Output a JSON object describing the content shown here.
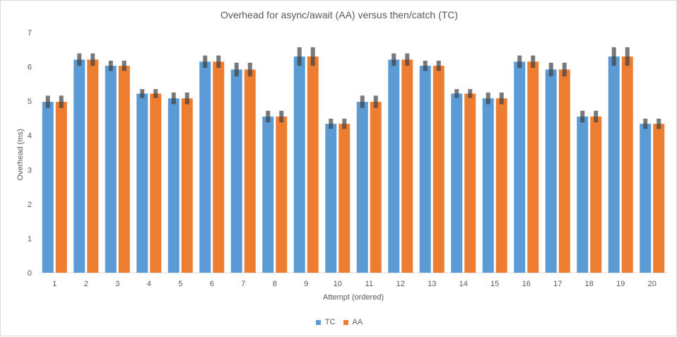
{
  "chart_data": {
    "type": "bar",
    "title": "Overhead for async/await (AA) versus then/catch (TC)",
    "xlabel": "Attempt  (ordered)",
    "ylabel": "Overhead (ms)",
    "ylim": [
      0,
      7
    ],
    "yticks": [
      "0",
      "1",
      "2",
      "3",
      "4",
      "5",
      "6",
      "7"
    ],
    "categories": [
      "1",
      "2",
      "3",
      "4",
      "5",
      "6",
      "7",
      "8",
      "9",
      "10",
      "11",
      "12",
      "13",
      "14",
      "15",
      "16",
      "17",
      "18",
      "19",
      "20"
    ],
    "series": [
      {
        "name": "TC",
        "color": "#5b9bd5",
        "values": [
          4.98,
          6.21,
          6.03,
          5.22,
          5.08,
          6.15,
          5.92,
          4.55,
          6.3,
          4.34,
          4.98,
          6.21,
          6.03,
          5.22,
          5.08,
          6.15,
          5.92,
          4.55,
          6.3,
          4.34
        ],
        "error": [
          0.18,
          0.18,
          0.15,
          0.13,
          0.17,
          0.18,
          0.2,
          0.17,
          0.27,
          0.15,
          0.18,
          0.18,
          0.15,
          0.13,
          0.17,
          0.18,
          0.2,
          0.17,
          0.27,
          0.15
        ]
      },
      {
        "name": "AA",
        "color": "#ed7d31",
        "values": [
          4.98,
          6.21,
          6.03,
          5.22,
          5.08,
          6.15,
          5.92,
          4.55,
          6.3,
          4.34,
          4.98,
          6.21,
          6.03,
          5.22,
          5.08,
          6.15,
          5.92,
          4.55,
          6.3,
          4.34
        ],
        "error": [
          0.18,
          0.18,
          0.15,
          0.13,
          0.17,
          0.18,
          0.2,
          0.17,
          0.27,
          0.15,
          0.18,
          0.18,
          0.15,
          0.13,
          0.17,
          0.18,
          0.2,
          0.17,
          0.27,
          0.15
        ]
      }
    ],
    "error_bar_color": "#404040",
    "grid": false,
    "legend_position": "bottom"
  }
}
